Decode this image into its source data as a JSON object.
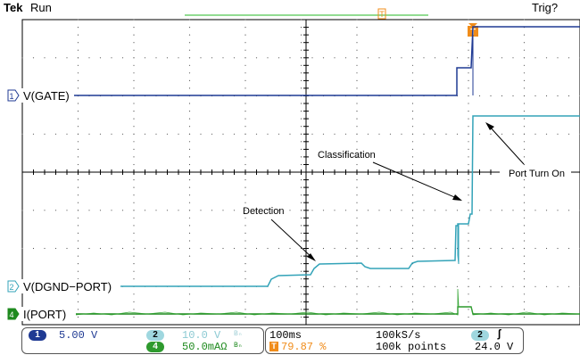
{
  "header": {
    "brand": "Tek",
    "run_state": "Run",
    "trig_status": "Trig?"
  },
  "channels": [
    {
      "id": "ch1",
      "marker": "1",
      "label": "V(GATE)",
      "color": "#1f3a93"
    },
    {
      "id": "ch2",
      "marker": "2",
      "label": "V(DGND−PORT)",
      "color": "#33a3b8"
    },
    {
      "id": "ch4",
      "marker": "4",
      "label": "I(PORT)",
      "color": "#1e8a1e"
    }
  ],
  "annotations": {
    "detection": "Detection",
    "classification": "Classification",
    "port_turn_on": "Port Turn On"
  },
  "readout": {
    "ch1_num": "1",
    "ch1_scale": "5.00 V",
    "ch2_num": "2",
    "ch2_scale": "10.0 V",
    "ch2_bw": "Bₙ",
    "ch4_num": "4",
    "ch4_scale": "50.0mAΩ",
    "ch4_bw": "Bₙ",
    "timebase": "100ms",
    "trigger_pos": "79.87 %",
    "sample_rate": "100kS/s",
    "record_length": "100k points",
    "trig_source": "2",
    "trig_slope": "ʃ",
    "trig_level": "24.0 V"
  },
  "colors": {
    "ch1": "#1f3a93",
    "ch2": "#33a3b8",
    "ch4": "#1e8a1e",
    "trigger": "#f08c1a",
    "record_bar": "#55c455"
  }
}
